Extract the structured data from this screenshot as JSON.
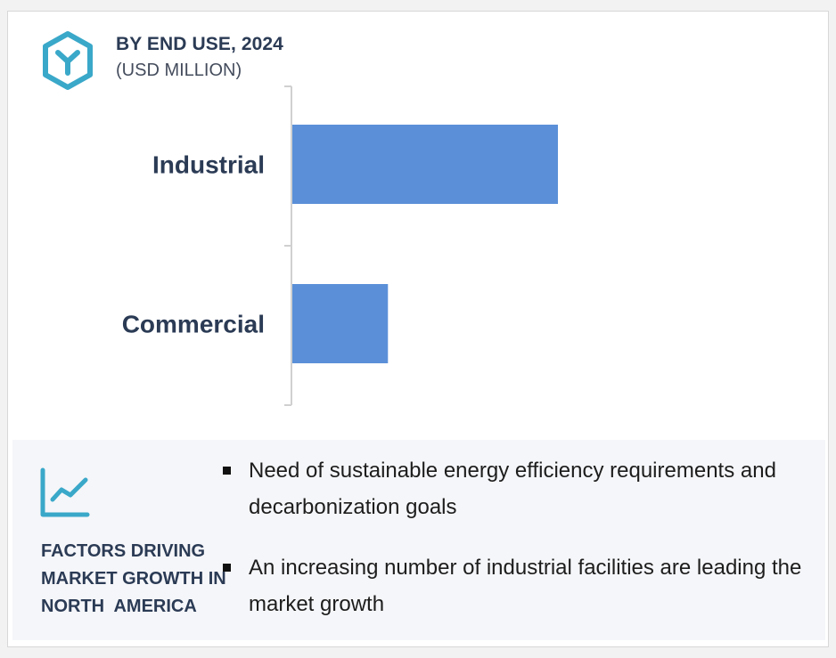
{
  "header": {
    "title": "BY END USE, 2024",
    "subtitle": "(USD MILLION)",
    "icon": "hexagon-y-icon",
    "icon_color": "#3aa8c9"
  },
  "chart_data": {
    "type": "bar",
    "orientation": "horizontal",
    "title": "BY END USE, 2024",
    "subtitle": "(USD MILLION)",
    "categories": [
      "Industrial",
      "Commercial"
    ],
    "values": [
      100,
      36
    ],
    "xlim": [
      0,
      100
    ],
    "value_axis_labels": false,
    "grid": false,
    "legend": "none",
    "bar_color": "#5b90d8"
  },
  "factors": {
    "title": "FACTORS DRIVING\nMARKET GROWTH IN\nNORTH  AMERICA",
    "icon": "trend-chart-icon",
    "bullets": [
      "Need of sustainable energy efficiency requirements and decarbonization goals",
      "An increasing number of industrial facilities are leading the market growth"
    ]
  }
}
